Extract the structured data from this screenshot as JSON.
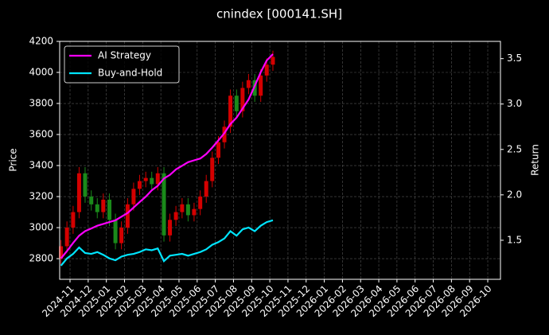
{
  "chart_data": {
    "type": "candlestick-returns",
    "title": "cnindex [000141.SH]",
    "y_label": "Price",
    "y2_label": "Return",
    "xlim": [
      -0.57,
      23.7
    ],
    "xticks": [
      {
        "value": 0,
        "label": "2024-11"
      },
      {
        "value": 1,
        "label": "2024-12"
      },
      {
        "value": 2,
        "label": "2025-01"
      },
      {
        "value": 3,
        "label": "2025-02"
      },
      {
        "value": 4,
        "label": "2025-03"
      },
      {
        "value": 5,
        "label": "2025-04"
      },
      {
        "value": 6,
        "label": "2025-05"
      },
      {
        "value": 7,
        "label": "2025-06"
      },
      {
        "value": 8,
        "label": "2025-07"
      },
      {
        "value": 9,
        "label": "2025-08"
      },
      {
        "value": 10,
        "label": "2025-09"
      },
      {
        "value": 11,
        "label": "2025-10"
      },
      {
        "value": 12,
        "label": "2025-11"
      },
      {
        "value": 13,
        "label": "2025-12"
      },
      {
        "value": 14,
        "label": "2026-01"
      },
      {
        "value": 15,
        "label": "2026-02"
      },
      {
        "value": 16,
        "label": "2026-03"
      },
      {
        "value": 17,
        "label": "2026-04"
      },
      {
        "value": 18,
        "label": "2026-05"
      },
      {
        "value": 19,
        "label": "2026-06"
      },
      {
        "value": 20,
        "label": "2026-07"
      },
      {
        "value": 21,
        "label": "2026-08"
      },
      {
        "value": 22,
        "label": "2026-09"
      },
      {
        "value": 23,
        "label": "2026-10"
      }
    ],
    "ylim": [
      2667,
      4200
    ],
    "yticks": [
      2800,
      3000,
      3200,
      3400,
      3600,
      3800,
      4000,
      4200
    ],
    "y2lim": [
      1.07,
      3.69
    ],
    "y2ticks": [
      1.5,
      {
        "value": 2,
        "label": "2.0"
      },
      2.5,
      {
        "value": 3,
        "label": "3.0"
      },
      3.5
    ],
    "grid": true,
    "legend": "upper left",
    "up_color": "#d40000",
    "down_color": "#1a8a1a",
    "x": [
      -0.5,
      -0.17,
      0.17,
      0.5,
      0.83,
      1.17,
      1.5,
      1.83,
      2.17,
      2.5,
      2.83,
      3.17,
      3.5,
      3.83,
      4.17,
      4.5,
      4.83,
      5.17,
      5.5,
      5.83,
      6.17,
      6.5,
      6.83,
      7.17,
      7.5,
      7.83,
      8.17,
      8.5,
      8.83,
      9.17,
      9.5,
      9.83,
      10.17,
      10.5,
      10.83,
      11.17
    ],
    "open": [
      2800,
      2880,
      3000,
      3100,
      3350,
      3200,
      3150,
      3100,
      3180,
      3050,
      2900,
      3000,
      3150,
      3250,
      3300,
      3320,
      3280,
      3350,
      2950,
      3050,
      3100,
      3150,
      3080,
      3120,
      3200,
      3300,
      3450,
      3550,
      3650,
      3850,
      3750,
      3900,
      3950,
      3850,
      3980,
      4050
    ],
    "high": [
      2920,
      3040,
      3140,
      3390,
      3390,
      3240,
      3190,
      3220,
      3220,
      3090,
      3040,
      3190,
      3290,
      3340,
      3360,
      3360,
      3390,
      3390,
      3090,
      3140,
      3190,
      3190,
      3160,
      3240,
      3340,
      3490,
      3590,
      3690,
      3890,
      3890,
      3940,
      3990,
      3990,
      4020,
      4090,
      4140
    ],
    "low": [
      2760,
      2840,
      2960,
      3060,
      3160,
      3110,
      3060,
      3060,
      3010,
      2860,
      2860,
      2960,
      3110,
      3210,
      3260,
      3240,
      3240,
      2910,
      2910,
      3010,
      3060,
      3040,
      3040,
      3080,
      3160,
      3260,
      3410,
      3510,
      3610,
      3710,
      3710,
      3860,
      3810,
      3810,
      3940,
      4010
    ],
    "close": [
      2880,
      3000,
      3100,
      3350,
      3200,
      3150,
      3100,
      3180,
      3050,
      2900,
      3000,
      3150,
      3250,
      3300,
      3320,
      3280,
      3350,
      2950,
      3050,
      3100,
      3150,
      3080,
      3120,
      3200,
      3300,
      3450,
      3550,
      3650,
      3850,
      3750,
      3900,
      3950,
      3850,
      3980,
      4050,
      4100
    ],
    "series": [
      {
        "name": "AI Strategy",
        "color": "#ff00ff",
        "axis": "y2",
        "values": [
          1.3,
          1.38,
          1.47,
          1.55,
          1.6,
          1.63,
          1.66,
          1.68,
          1.7,
          1.72,
          1.76,
          1.8,
          1.86,
          1.92,
          1.98,
          2.05,
          2.1,
          2.18,
          2.22,
          2.28,
          2.32,
          2.36,
          2.38,
          2.4,
          2.45,
          2.52,
          2.6,
          2.68,
          2.78,
          2.85,
          2.95,
          3.05,
          3.2,
          3.35,
          3.48,
          3.55
        ]
      },
      {
        "name": "Buy-and-Hold",
        "color": "#00e5ff",
        "axis": "y2",
        "values": [
          1.22,
          1.3,
          1.35,
          1.42,
          1.36,
          1.35,
          1.37,
          1.34,
          1.3,
          1.28,
          1.32,
          1.34,
          1.35,
          1.37,
          1.4,
          1.39,
          1.41,
          1.27,
          1.33,
          1.34,
          1.35,
          1.33,
          1.35,
          1.37,
          1.4,
          1.45,
          1.48,
          1.52,
          1.6,
          1.55,
          1.62,
          1.64,
          1.6,
          1.66,
          1.7,
          1.72
        ]
      }
    ]
  }
}
